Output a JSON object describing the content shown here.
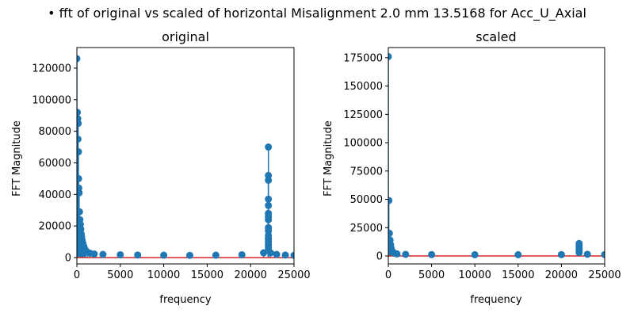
{
  "figure": {
    "suptitle": "• fft of original vs scaled of horizontal Misalignment 2.0 mm 13.5168 for Acc_U_Axial"
  },
  "colors": {
    "stem": "#1f77b4",
    "baseline": "#d62728"
  },
  "chart_data": [
    {
      "type": "stem",
      "title": "original",
      "xlabel": "frequency",
      "ylabel": "FFT Magnitude",
      "xlim": [
        0,
        25000
      ],
      "ylim": [
        -4000,
        133000
      ],
      "xticks": [
        0,
        5000,
        10000,
        15000,
        20000,
        25000
      ],
      "yticks": [
        0,
        20000,
        40000,
        60000,
        80000,
        100000,
        120000
      ],
      "grid": false,
      "baseline": 0,
      "points": [
        [
          0,
          126000
        ],
        [
          50,
          92000
        ],
        [
          100,
          88000
        ],
        [
          150,
          85000
        ],
        [
          120,
          75000
        ],
        [
          180,
          67000
        ],
        [
          200,
          50000
        ],
        [
          220,
          44000
        ],
        [
          260,
          41000
        ],
        [
          300,
          29000
        ],
        [
          350,
          24000
        ],
        [
          400,
          21000
        ],
        [
          450,
          18000
        ],
        [
          500,
          15000
        ],
        [
          550,
          13000
        ],
        [
          600,
          11000
        ],
        [
          700,
          9000
        ],
        [
          800,
          7000
        ],
        [
          900,
          5500
        ],
        [
          1000,
          4500
        ],
        [
          1200,
          3500
        ],
        [
          1500,
          2800
        ],
        [
          2000,
          2300
        ],
        [
          3000,
          2000
        ],
        [
          5000,
          1800
        ],
        [
          7000,
          1600
        ],
        [
          10000,
          1500
        ],
        [
          13000,
          1400
        ],
        [
          16000,
          1500
        ],
        [
          19000,
          1800
        ],
        [
          21500,
          3000
        ],
        [
          22050,
          70000
        ],
        [
          22050,
          52000
        ],
        [
          22050,
          49000
        ],
        [
          22050,
          37000
        ],
        [
          22050,
          33000
        ],
        [
          22050,
          28000
        ],
        [
          22050,
          26000
        ],
        [
          22050,
          24000
        ],
        [
          22050,
          19000
        ],
        [
          22050,
          17000
        ],
        [
          22050,
          14000
        ],
        [
          22050,
          12000
        ],
        [
          22050,
          10000
        ],
        [
          22050,
          8000
        ],
        [
          22050,
          6000
        ],
        [
          22300,
          3000
        ],
        [
          23000,
          2000
        ],
        [
          24000,
          1600
        ],
        [
          25000,
          1400
        ]
      ]
    },
    {
      "type": "stem",
      "title": "scaled",
      "xlabel": "frequency",
      "ylabel": "FFT Magnitude",
      "xlim": [
        0,
        25000
      ],
      "ylim": [
        -7000,
        184000
      ],
      "xticks": [
        0,
        5000,
        10000,
        15000,
        20000,
        25000
      ],
      "yticks": [
        0,
        25000,
        50000,
        75000,
        100000,
        125000,
        150000,
        175000
      ],
      "grid": false,
      "baseline": 0,
      "points": [
        [
          0,
          176000
        ],
        [
          60,
          49000
        ],
        [
          120,
          20000
        ],
        [
          200,
          14000
        ],
        [
          260,
          10000
        ],
        [
          320,
          7000
        ],
        [
          400,
          5000
        ],
        [
          500,
          3500
        ],
        [
          700,
          2500
        ],
        [
          1000,
          1800
        ],
        [
          2000,
          1400
        ],
        [
          5000,
          1200
        ],
        [
          10000,
          1100
        ],
        [
          15000,
          1100
        ],
        [
          20000,
          1200
        ],
        [
          22050,
          11000
        ],
        [
          22050,
          9000
        ],
        [
          22050,
          7000
        ],
        [
          22050,
          5000
        ],
        [
          22050,
          3000
        ],
        [
          23000,
          1500
        ],
        [
          25000,
          1200
        ]
      ]
    }
  ]
}
